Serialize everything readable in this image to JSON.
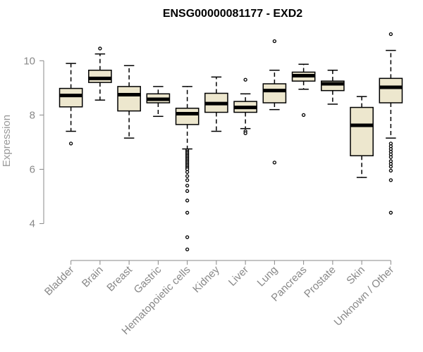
{
  "chart_data": {
    "type": "box",
    "title": "ENSG00000081177 - EXD2",
    "xlabel": "",
    "ylabel": "Expression",
    "ylim": [
      2.9,
      11.2
    ],
    "yticks": [
      4,
      6,
      8,
      10
    ],
    "categories": [
      "Bladder",
      "Brain",
      "Breast",
      "Gastric",
      "Hematopoietic cells",
      "Kidney",
      "Liver",
      "Lung",
      "Pancreas",
      "Prostate",
      "Skin",
      "Unknown / Other"
    ],
    "boxes": [
      {
        "category": "Bladder",
        "whisker_low": 7.4,
        "q1": 8.3,
        "median": 8.72,
        "q3": 8.98,
        "whisker_high": 9.9,
        "outliers": [
          6.95
        ]
      },
      {
        "category": "Brain",
        "whisker_low": 8.55,
        "q1": 9.2,
        "median": 9.35,
        "q3": 9.65,
        "whisker_high": 10.25,
        "outliers": [
          10.45
        ]
      },
      {
        "category": "Breast",
        "whisker_low": 7.15,
        "q1": 8.15,
        "median": 8.75,
        "q3": 9.05,
        "whisker_high": 9.82,
        "outliers": []
      },
      {
        "category": "Gastric",
        "whisker_low": 7.95,
        "q1": 8.45,
        "median": 8.58,
        "q3": 8.78,
        "whisker_high": 9.05,
        "outliers": []
      },
      {
        "category": "Hematopoietic cells",
        "whisker_low": 6.75,
        "q1": 7.65,
        "median": 8.05,
        "q3": 8.25,
        "whisker_high": 9.05,
        "outliers": [
          6.7,
          6.65,
          6.6,
          6.55,
          6.5,
          6.45,
          6.4,
          6.35,
          6.3,
          6.25,
          6.2,
          6.15,
          6.1,
          6.05,
          6.0,
          5.9,
          5.75,
          5.6,
          5.4,
          5.2,
          4.85,
          4.4,
          3.5,
          3.05
        ]
      },
      {
        "category": "Kidney",
        "whisker_low": 7.4,
        "q1": 8.1,
        "median": 8.42,
        "q3": 8.8,
        "whisker_high": 9.4,
        "outliers": []
      },
      {
        "category": "Liver",
        "whisker_low": 7.5,
        "q1": 8.1,
        "median": 8.28,
        "q3": 8.5,
        "whisker_high": 8.78,
        "outliers": [
          9.3,
          7.4,
          7.33
        ]
      },
      {
        "category": "Lung",
        "whisker_low": 8.2,
        "q1": 8.45,
        "median": 8.9,
        "q3": 9.15,
        "whisker_high": 9.65,
        "outliers": [
          10.72,
          6.25
        ]
      },
      {
        "category": "Pancreas",
        "whisker_low": 8.95,
        "q1": 9.25,
        "median": 9.45,
        "q3": 9.58,
        "whisker_high": 9.87,
        "outliers": [
          8.0
        ]
      },
      {
        "category": "Prostate",
        "whisker_low": 8.4,
        "q1": 8.9,
        "median": 9.15,
        "q3": 9.25,
        "whisker_high": 9.65,
        "outliers": []
      },
      {
        "category": "Skin",
        "whisker_low": 5.7,
        "q1": 6.5,
        "median": 7.62,
        "q3": 8.28,
        "whisker_high": 8.68,
        "outliers": []
      },
      {
        "category": "Unknown / Other",
        "whisker_low": 7.15,
        "q1": 8.45,
        "median": 9.02,
        "q3": 9.35,
        "whisker_high": 10.38,
        "outliers": [
          10.98,
          6.95,
          6.85,
          6.75,
          6.65,
          6.55,
          6.45,
          6.3,
          6.2,
          6.1,
          5.95,
          5.6,
          4.4
        ]
      }
    ]
  }
}
